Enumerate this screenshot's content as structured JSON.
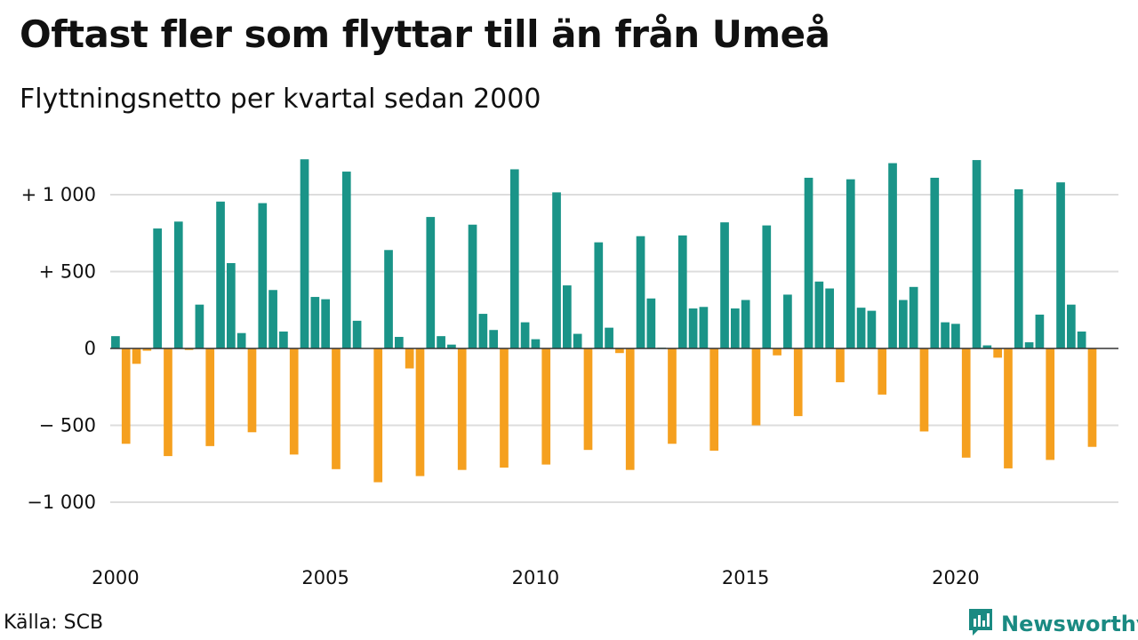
{
  "header": {
    "title": "Oftast fler som flyttar till än från Umeå",
    "subtitle": "Flyttningsnetto per kvartal sedan 2000"
  },
  "footer": {
    "source": "Källa: SCB",
    "brand": "Newsworthy"
  },
  "colors": {
    "positive": "#1a9488",
    "negative": "#f5a01f",
    "brand": "#1a8a82",
    "grid": "#dddddd"
  },
  "icons": {
    "brand_logo": "newsworthy-chart-icon"
  },
  "chart_data": {
    "type": "bar",
    "ylim": [
      -1300,
      1300
    ],
    "grid": true,
    "y_ticks": [
      {
        "value": 1000,
        "label": "+ 1 000"
      },
      {
        "value": 500,
        "label": "+   500"
      },
      {
        "value": 0,
        "label": "0"
      },
      {
        "value": -500,
        "label": "−  500"
      },
      {
        "value": -1000,
        "label": "−1 000"
      }
    ],
    "x_ticks": [
      "2000",
      "2005",
      "2010",
      "2015",
      "2020"
    ],
    "categories": [
      "2000K1",
      "2000K2",
      "2000K3",
      "2000K4",
      "2001K1",
      "2001K2",
      "2001K3",
      "2001K4",
      "2002K1",
      "2002K2",
      "2002K3",
      "2002K4",
      "2003K1",
      "2003K2",
      "2003K3",
      "2003K4",
      "2004K1",
      "2004K2",
      "2004K3",
      "2004K4",
      "2005K1",
      "2005K2",
      "2005K3",
      "2005K4",
      "2006K1",
      "2006K2",
      "2006K3",
      "2006K4",
      "2007K1",
      "2007K2",
      "2007K3",
      "2007K4",
      "2008K1",
      "2008K2",
      "2008K3",
      "2008K4",
      "2009K1",
      "2009K2",
      "2009K3",
      "2009K4",
      "2010K1",
      "2010K2",
      "2010K3",
      "2010K4",
      "2011K1",
      "2011K2",
      "2011K3",
      "2011K4",
      "2012K1",
      "2012K2",
      "2012K3",
      "2012K4",
      "2013K1",
      "2013K2",
      "2013K3",
      "2013K4",
      "2014K1",
      "2014K2",
      "2014K3",
      "2014K4",
      "2015K1",
      "2015K2",
      "2015K3",
      "2015K4",
      "2016K1",
      "2016K2",
      "2016K3",
      "2016K4",
      "2017K1",
      "2017K2",
      "2017K3",
      "2017K4",
      "2018K1",
      "2018K2",
      "2018K3",
      "2018K4",
      "2019K1",
      "2019K2",
      "2019K3",
      "2019K4",
      "2020K1",
      "2020K2",
      "2020K3",
      "2020K4",
      "2021K1",
      "2021K2",
      "2021K3",
      "2021K4",
      "2022K1",
      "2022K2",
      "2022K3",
      "2022K4",
      "2023K1",
      "2023K2",
      "2023K3",
      "2023K4"
    ],
    "values": [
      80,
      -620,
      -100,
      -15,
      780,
      -700,
      825,
      -10,
      285,
      -635,
      955,
      555,
      100,
      -545,
      945,
      380,
      110,
      -690,
      1230,
      335,
      320,
      -785,
      1150,
      180,
      0,
      -870,
      640,
      75,
      -130,
      -830,
      855,
      80,
      25,
      -790,
      805,
      225,
      120,
      -775,
      1165,
      170,
      60,
      -755,
      1015,
      410,
      95,
      -660,
      690,
      135,
      -30,
      -790,
      730,
      325,
      5,
      -620,
      735,
      260,
      270,
      -665,
      820,
      260,
      315,
      -500,
      800,
      -45,
      350,
      -440,
      1110,
      435,
      390,
      -220,
      1100,
      265,
      245,
      -300,
      1205,
      315,
      400,
      -540,
      1110,
      170,
      160,
      -710,
      1225,
      20,
      -60,
      -780,
      1035,
      40,
      220,
      -725,
      1080,
      285,
      110,
      -640,
      0,
      0
    ]
  }
}
